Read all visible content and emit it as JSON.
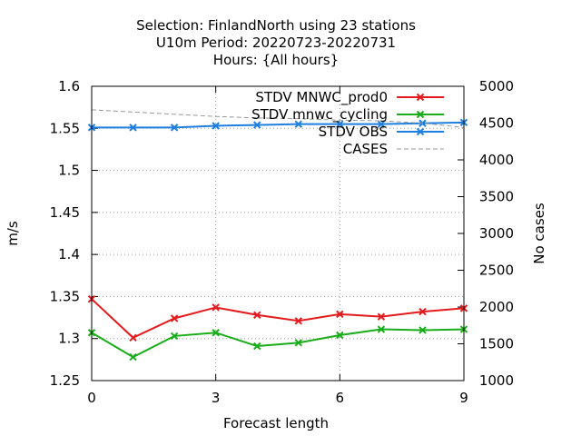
{
  "title_lines": [
    "Selection: FinlandNorth using    23 stations",
    "U10m   Period: 20220723-20220731",
    "Hours: {All hours}"
  ],
  "chart_data": {
    "type": "line",
    "xlabel": "Forecast length",
    "ylabel": "m/s",
    "y2label": "No cases",
    "xlim": [
      0,
      9
    ],
    "ylim": [
      1.25,
      1.6
    ],
    "y2lim": [
      1000,
      5000
    ],
    "x_ticks": [
      "0",
      "3",
      "6",
      "9"
    ],
    "y_ticks": [
      "1.25",
      "1.3",
      "1.35",
      "1.4",
      "1.45",
      "1.5",
      "1.55",
      "1.6"
    ],
    "y2_ticks": [
      "1000",
      "1500",
      "2000",
      "2500",
      "3000",
      "3500",
      "4000",
      "4500",
      "5000"
    ],
    "grid": true,
    "legend_position": "top-right",
    "x": [
      0,
      1,
      2,
      3,
      4,
      5,
      6,
      7,
      8,
      9
    ],
    "series": [
      {
        "name": "STDV MNWC_prod0",
        "color": "#e41a1c",
        "marker": "x",
        "axis": "y",
        "values": [
          1.347,
          1.301,
          1.324,
          1.337,
          1.328,
          1.321,
          1.329,
          1.326,
          1.332,
          1.336
        ]
      },
      {
        "name": "STDV mnwc_cycling",
        "color": "#1aad1a",
        "marker": "x",
        "axis": "y",
        "values": [
          1.307,
          1.278,
          1.303,
          1.307,
          1.291,
          1.295,
          1.304,
          1.311,
          1.31,
          1.311
        ]
      },
      {
        "name": "STDV OBS",
        "color": "#1f7fe0",
        "marker": "x",
        "axis": "y",
        "values": [
          1.551,
          1.551,
          1.551,
          1.553,
          1.554,
          1.555,
          1.555,
          1.555,
          1.556,
          1.557
        ]
      },
      {
        "name": "CASES",
        "color": "#999999",
        "marker": "none",
        "dash": true,
        "axis": "y2",
        "values": [
          4680,
          4650,
          4620,
          4590,
          4570,
          4560,
          4540,
          4530,
          4500,
          4440
        ]
      }
    ]
  }
}
